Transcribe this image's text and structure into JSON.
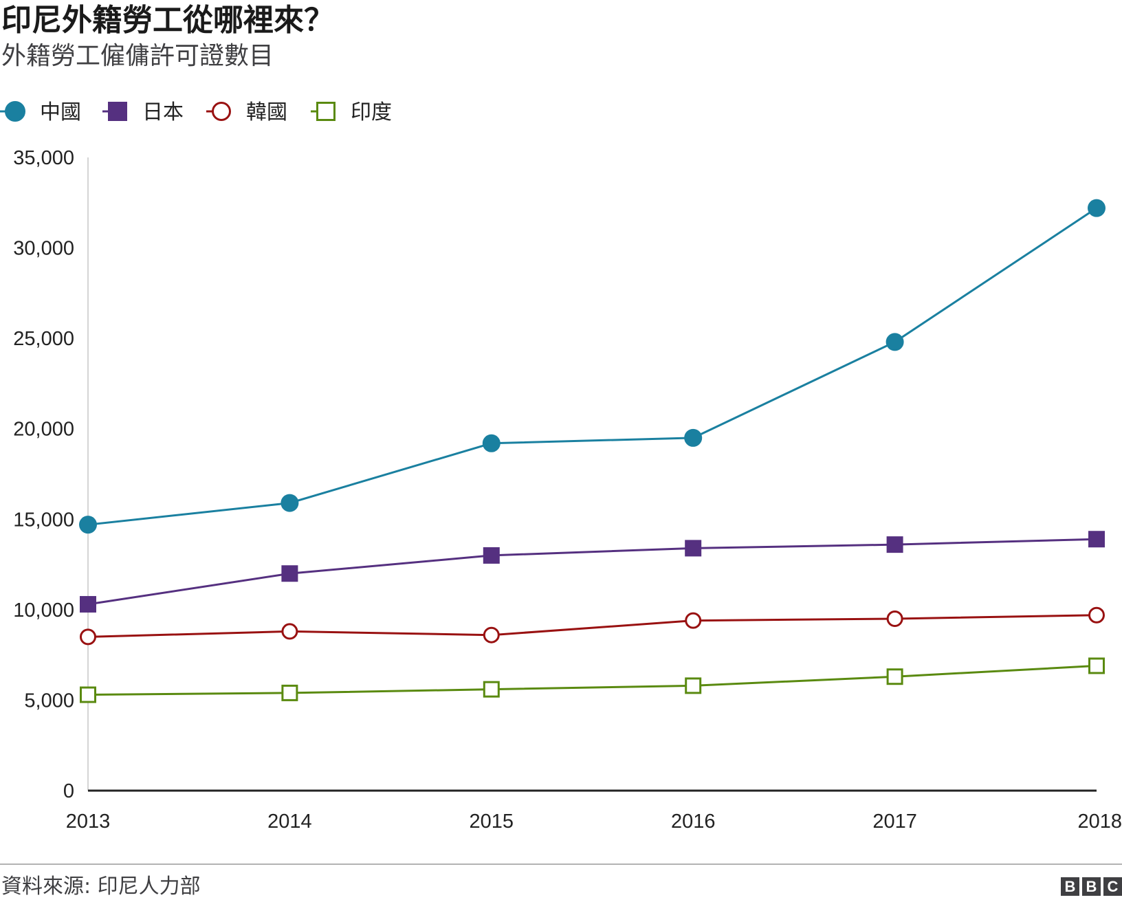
{
  "title": "印尼外籍勞工從哪裡來？",
  "subtitle": "外籍勞工僱傭許可證數目",
  "source": "資料來源: 印尼人力部",
  "logo": {
    "letters": [
      "B",
      "B",
      "C"
    ]
  },
  "chart_data": {
    "type": "line",
    "title": "印尼外籍勞工從哪裡來？",
    "subtitle": "外籍勞工僱傭許可證數目",
    "xlabel": "",
    "ylabel": "",
    "x": [
      "2013",
      "2014",
      "2015",
      "2016",
      "2017",
      "2018"
    ],
    "ylim": [
      0,
      35000
    ],
    "yticks": [
      0,
      5000,
      10000,
      15000,
      20000,
      25000,
      30000,
      35000
    ],
    "ytick_labels": [
      "0",
      "5,000",
      "10,000",
      "15,000",
      "20,000",
      "25,000",
      "30,000",
      "35,000"
    ],
    "grid": false,
    "legend_position": "top-left",
    "series": [
      {
        "name": "中國",
        "color": "#1a80a0",
        "marker": "filled-circle",
        "values": [
          14700,
          15900,
          19200,
          19500,
          24800,
          32200
        ]
      },
      {
        "name": "日本",
        "color": "#553080",
        "marker": "filled-square",
        "values": [
          10300,
          12000,
          13000,
          13400,
          13600,
          13900
        ]
      },
      {
        "name": "韓國",
        "color": "#991111",
        "marker": "open-circle",
        "values": [
          8500,
          8800,
          8600,
          9400,
          9500,
          9700
        ]
      },
      {
        "name": "印度",
        "color": "#5a8a10",
        "marker": "open-square",
        "values": [
          5300,
          5400,
          5600,
          5800,
          6300,
          6900
        ]
      }
    ]
  }
}
